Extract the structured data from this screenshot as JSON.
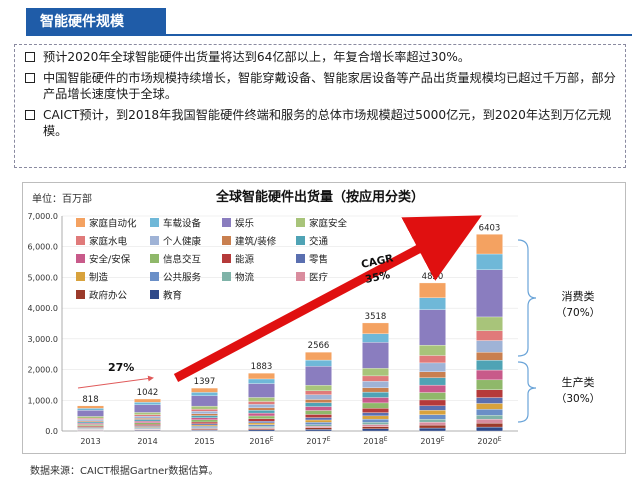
{
  "header": {
    "title": "智能硬件规模"
  },
  "bullets": [
    "预计2020年全球智能硬件出货量将达到64亿部以上，年复合增长率超过30%。",
    "中国智能硬件的市场规模持续增长，智能穿戴设备、智能家居设备等产品出货量规模均已超过千万部，部分产品增长速度快于全球。",
    "CAICT预计，到2018年我国智能硬件终端和服务的总体市场规模超过5000亿元，到2020年达到万亿元规模。"
  ],
  "unit_label": "单位：百万部",
  "source": "数据来源：CAICT根据Gartner数据估算。",
  "chart_data": {
    "type": "bar",
    "stacked": true,
    "title": "全球智能硬件出货量（按应用分类）",
    "categories": [
      "2013",
      "2014",
      "2015",
      "2016E",
      "2017E",
      "2018E",
      "2019E",
      "2020E"
    ],
    "totals": [
      818,
      1042,
      1397,
      1883,
      2566,
      3518,
      4820,
      6403
    ],
    "ylim": [
      0,
      7000
    ],
    "yticks": [
      "0.0",
      "1,000.0",
      "2,000.0",
      "3,000.0",
      "4,000.0",
      "5,000.0",
      "6,000.0",
      "7,000.0"
    ],
    "series_names": [
      "家庭自动化",
      "车载设备",
      "娱乐",
      "家庭安全",
      "家庭水电",
      "个人健康",
      "建筑/装修",
      "交通",
      "安全/安保",
      "信息交互",
      "能源",
      "零售",
      "制造",
      "公共服务",
      "物流",
      "医疗",
      "政府办公",
      "教育"
    ],
    "series_colors": [
      "#f4a261",
      "#6fb8d8",
      "#8a7dbf",
      "#a8c47a",
      "#e07a7a",
      "#9fb3d6",
      "#c97f4f",
      "#4fa3b5",
      "#c85a8a",
      "#8fb86a",
      "#b53a3a",
      "#5a6fb0",
      "#d8a23c",
      "#6a8fc7",
      "#7fb3a8",
      "#d98c9e",
      "#9b3a2a",
      "#2f4a8a"
    ],
    "series_shares": [
      0.1,
      0.08,
      0.24,
      0.07,
      0.05,
      0.06,
      0.04,
      0.05,
      0.05,
      0.05,
      0.04,
      0.03,
      0.03,
      0.03,
      0.02,
      0.02,
      0.02,
      0.02
    ],
    "annotations": {
      "early_growth": "27%",
      "cagr_label": "CAGR",
      "cagr_value": "35%",
      "consumer_label": "消费类",
      "consumer_share": "（70%）",
      "producer_label": "生产类",
      "producer_share": "（30%）"
    }
  }
}
